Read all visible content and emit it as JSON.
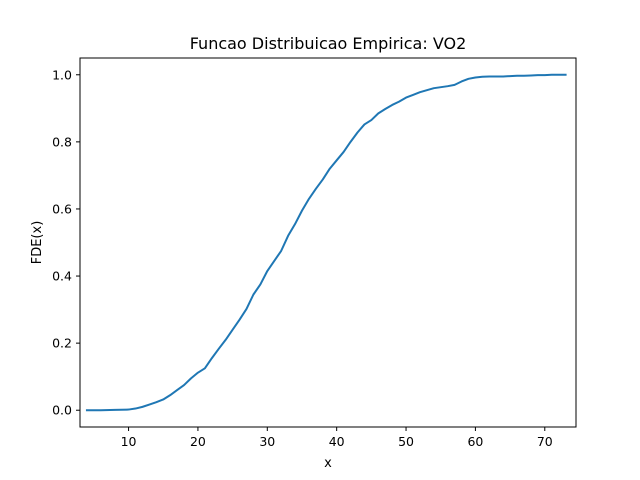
{
  "chart_data": {
    "type": "line",
    "title": "Funcao Distribuicao Empirica: VO2",
    "xlabel": "x",
    "ylabel": "FDE(x)",
    "xlim": [
      3.0,
      74.5
    ],
    "ylim": [
      -0.05,
      1.05
    ],
    "xticks": [
      10,
      20,
      30,
      40,
      50,
      60,
      70
    ],
    "yticks": [
      0.0,
      0.2,
      0.4,
      0.6,
      0.8,
      1.0
    ],
    "xtick_labels": [
      "10",
      "20",
      "30",
      "40",
      "50",
      "60",
      "70"
    ],
    "ytick_labels": [
      "0.0",
      "0.2",
      "0.4",
      "0.6",
      "0.8",
      "1.0"
    ],
    "grid": false,
    "line_color": "#1f77b4",
    "series": [
      {
        "x": [
          4,
          6,
          8,
          10,
          11,
          12,
          13,
          14,
          15,
          16,
          17,
          18,
          19,
          20,
          21,
          22,
          23,
          24,
          25,
          26,
          27,
          28,
          29,
          30,
          31,
          32,
          33,
          34,
          35,
          36,
          37,
          38,
          39,
          40,
          41,
          42,
          43,
          44,
          45,
          46,
          47,
          48,
          49,
          50,
          51,
          52,
          53,
          54,
          55,
          56,
          57,
          58,
          59,
          60,
          61,
          62,
          63,
          64,
          65,
          66,
          67,
          68,
          69,
          70,
          71,
          72,
          73
        ],
        "y": [
          0.0,
          0.0,
          0.001,
          0.002,
          0.005,
          0.01,
          0.017,
          0.024,
          0.032,
          0.045,
          0.06,
          0.075,
          0.095,
          0.112,
          0.125,
          0.155,
          0.183,
          0.21,
          0.24,
          0.27,
          0.302,
          0.345,
          0.375,
          0.415,
          0.445,
          0.475,
          0.52,
          0.555,
          0.595,
          0.63,
          0.66,
          0.688,
          0.72,
          0.745,
          0.77,
          0.8,
          0.828,
          0.852,
          0.865,
          0.885,
          0.898,
          0.91,
          0.92,
          0.932,
          0.94,
          0.948,
          0.954,
          0.96,
          0.963,
          0.966,
          0.97,
          0.98,
          0.988,
          0.992,
          0.994,
          0.995,
          0.995,
          0.995,
          0.996,
          0.997,
          0.997,
          0.998,
          0.999,
          0.999,
          1.0,
          1.0,
          1.0
        ]
      }
    ]
  }
}
